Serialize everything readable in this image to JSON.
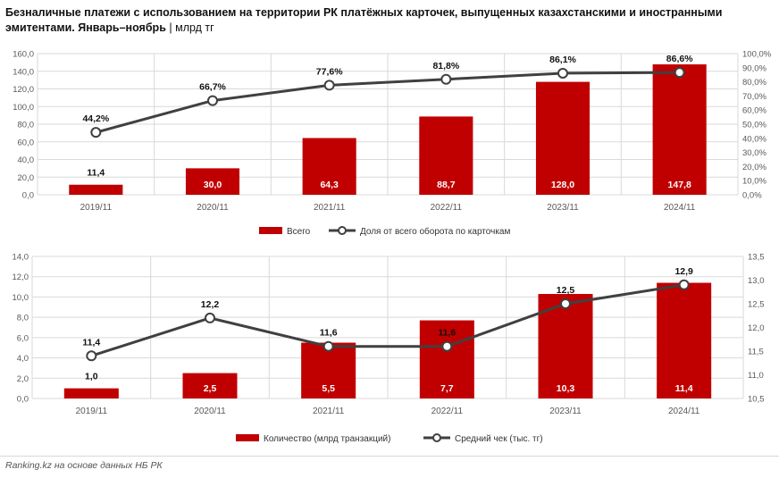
{
  "header": {
    "title_bold": "Безналичные платежи с использованием на территории РК платёжных карточек, выпущенных казахстанскими и иностранными эмитентами. Январь–ноябрь",
    "title_sep": " | ",
    "title_unit": "млрд тг"
  },
  "footer": {
    "source": "Ranking.kz на основе данных НБ РК"
  },
  "colors": {
    "bar": "#c00000",
    "line": "#404040",
    "marker_fill": "#ffffff",
    "grid": "#d9d9d9",
    "axis_text": "#595959"
  },
  "chart_data": [
    {
      "type": "bar+line",
      "categories": [
        "2019/11",
        "2020/11",
        "2021/11",
        "2022/11",
        "2023/11",
        "2024/11"
      ],
      "bar_series": {
        "name": "Всего",
        "values": [
          11.4,
          30.0,
          64.3,
          88.7,
          128.0,
          147.8
        ],
        "labels": [
          "11,4",
          "30,0",
          "64,3",
          "88,7",
          "128,0",
          "147,8"
        ]
      },
      "line_series": {
        "name": "Доля от всего оборота по карточкам",
        "values": [
          44.2,
          66.7,
          77.6,
          81.8,
          86.1,
          86.6
        ],
        "labels": [
          "44,2%",
          "66,7%",
          "77,6%",
          "81,8%",
          "86,1%",
          "86,6%"
        ]
      },
      "y_left": {
        "min": 0,
        "max": 160,
        "step": 20,
        "ticks": [
          "0,0",
          "20,0",
          "40,0",
          "60,0",
          "80,0",
          "100,0",
          "120,0",
          "140,0",
          "160,0"
        ]
      },
      "y_right": {
        "min": 0,
        "max": 100,
        "step": 10,
        "ticks": [
          "0,0%",
          "10,0%",
          "20,0%",
          "30,0%",
          "40,0%",
          "50,0%",
          "60,0%",
          "70,0%",
          "80,0%",
          "90,0%",
          "100,0%"
        ]
      },
      "grid": true,
      "legend": "bottom"
    },
    {
      "type": "bar+line",
      "categories": [
        "2019/11",
        "2020/11",
        "2021/11",
        "2022/11",
        "2023/11",
        "2024/11"
      ],
      "bar_series": {
        "name": "Количество (млрд транзакций)",
        "values": [
          1.0,
          2.5,
          5.5,
          7.7,
          10.3,
          11.4
        ],
        "labels": [
          "1,0",
          "2,5",
          "5,5",
          "7,7",
          "10,3",
          "11,4"
        ]
      },
      "line_series": {
        "name": "Средний чек (тыс. тг)",
        "values": [
          11.4,
          12.2,
          11.6,
          11.6,
          12.5,
          12.9
        ],
        "labels": [
          "11,4",
          "12,2",
          "11,6",
          "11,6",
          "12,5",
          "12,9"
        ]
      },
      "y_left": {
        "min": 0,
        "max": 14,
        "step": 2,
        "ticks": [
          "0,0",
          "2,0",
          "4,0",
          "6,0",
          "8,0",
          "10,0",
          "12,0",
          "14,0"
        ]
      },
      "y_right": {
        "min": 10.5,
        "max": 13.5,
        "step": 0.5,
        "ticks": [
          "10,5",
          "11,0",
          "11,5",
          "12,0",
          "12,5",
          "13,0",
          "13,5"
        ]
      },
      "grid": true,
      "legend": "bottom"
    }
  ]
}
